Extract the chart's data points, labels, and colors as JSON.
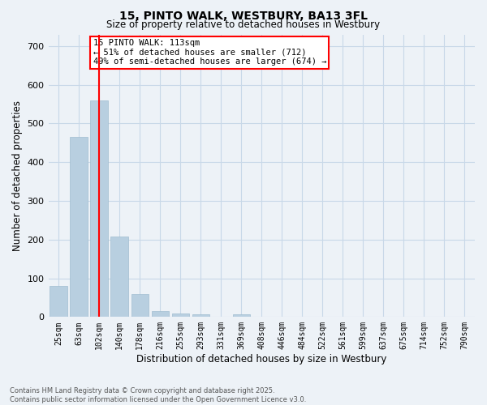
{
  "title": "15, PINTO WALK, WESTBURY, BA13 3FL",
  "subtitle": "Size of property relative to detached houses in Westbury",
  "xlabel": "Distribution of detached houses by size in Westbury",
  "ylabel": "Number of detached properties",
  "bar_color": "#b8cfe0",
  "bar_edge_color": "#a0bdd0",
  "grid_color": "#c8d8e8",
  "background_color": "#edf2f7",
  "vline_color": "red",
  "annotation_text": "15 PINTO WALK: 113sqm\n← 51% of detached houses are smaller (712)\n49% of semi-detached houses are larger (674) →",
  "annotation_box_color": "white",
  "annotation_box_edge": "red",
  "categories": [
    "25sqm",
    "63sqm",
    "102sqm",
    "140sqm",
    "178sqm",
    "216sqm",
    "255sqm",
    "293sqm",
    "331sqm",
    "369sqm",
    "408sqm",
    "446sqm",
    "484sqm",
    "522sqm",
    "561sqm",
    "599sqm",
    "637sqm",
    "675sqm",
    "714sqm",
    "752sqm",
    "790sqm"
  ],
  "values": [
    80,
    465,
    560,
    208,
    60,
    15,
    10,
    8,
    0,
    8,
    0,
    0,
    0,
    0,
    0,
    0,
    0,
    0,
    0,
    0,
    0
  ],
  "ylim": [
    0,
    730
  ],
  "yticks": [
    0,
    100,
    200,
    300,
    400,
    500,
    600,
    700
  ],
  "vline_bin_index": 2,
  "footer_line1": "Contains HM Land Registry data © Crown copyright and database right 2025.",
  "footer_line2": "Contains public sector information licensed under the Open Government Licence v3.0."
}
